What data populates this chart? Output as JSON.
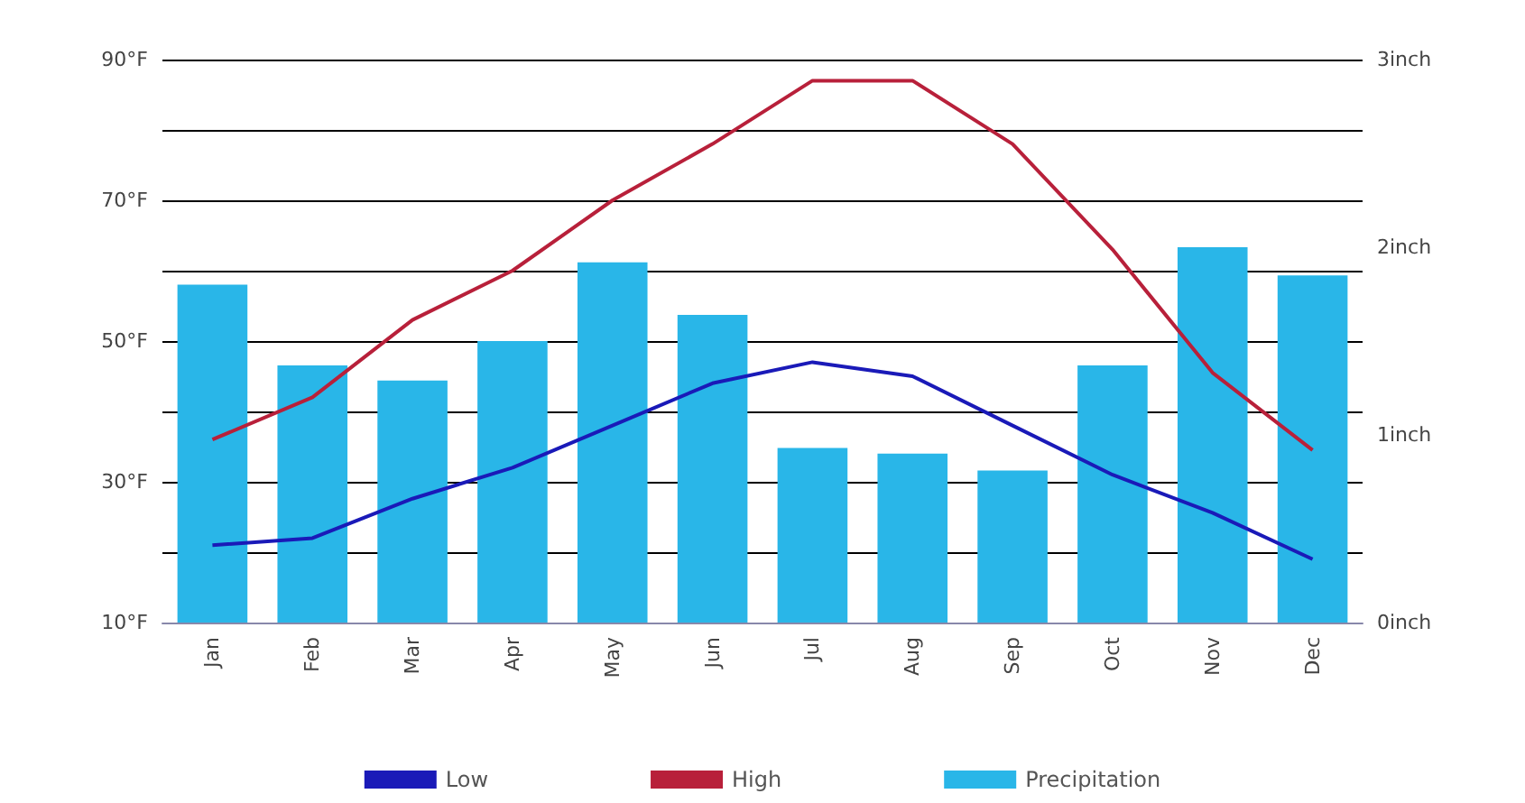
{
  "chart_data": {
    "type": "bar",
    "categories": [
      "Jan",
      "Feb",
      "Mar",
      "Apr",
      "May",
      "Jun",
      "Jul",
      "Aug",
      "Sep",
      "Oct",
      "Nov",
      "Dec"
    ],
    "series": [
      {
        "name": "Low",
        "type": "line",
        "color": "#1a1ab8",
        "values": [
          21,
          22,
          27.6,
          32,
          38,
          44,
          47,
          45,
          38,
          31,
          25.6,
          19
        ]
      },
      {
        "name": "High",
        "type": "line",
        "color": "#b8203a",
        "values": [
          36,
          42,
          53,
          60,
          70,
          78,
          87,
          87,
          78,
          63,
          45.5,
          34.5
        ]
      },
      {
        "name": "Precipitation",
        "axis": "y2",
        "color": "#29b6e8",
        "values": [
          1.8,
          1.37,
          1.29,
          1.5,
          1.92,
          1.64,
          0.93,
          0.9,
          0.81,
          1.37,
          2.0,
          1.85
        ]
      }
    ],
    "ylim": [
      10,
      90
    ],
    "yticks": [
      {
        "value": 10,
        "label": "10°F"
      },
      {
        "value": 20,
        "label": null
      },
      {
        "value": 30,
        "label": "30°F"
      },
      {
        "value": 40,
        "label": null
      },
      {
        "value": 50,
        "label": "50°F"
      },
      {
        "value": 60,
        "label": null
      },
      {
        "value": 70,
        "label": "70°F"
      },
      {
        "value": 80,
        "label": null
      },
      {
        "value": 90,
        "label": "90°F"
      }
    ],
    "y2lim": [
      0,
      3
    ],
    "y2ticks": [
      {
        "value": 0,
        "label": "0inch"
      },
      {
        "value": 1,
        "label": "1inch"
      },
      {
        "value": 2,
        "label": "2inch"
      },
      {
        "value": 3,
        "label": "3inch"
      }
    ],
    "grid": "y",
    "legend": "bottom",
    "marker": "none"
  }
}
